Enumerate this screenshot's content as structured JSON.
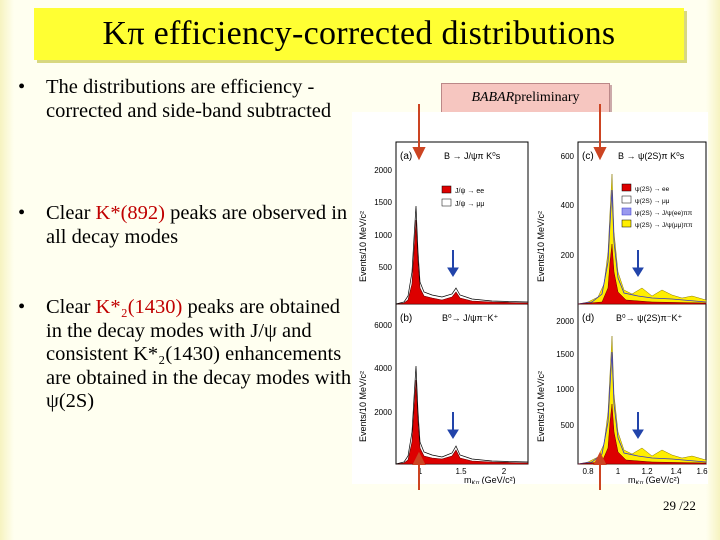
{
  "slide": {
    "title": "Kπ efficiency-corrected distributions",
    "bullets": [
      {
        "pre": "The distributions are efficiency -corrected and side-band subtracted",
        "hl": "",
        "post": ""
      },
      {
        "pre": "Clear ",
        "hl": "K*(892)",
        "post": " peaks are observed in all decay modes"
      },
      {
        "pre": "Clear ",
        "hl": "K*₂(1430)",
        "post": " peaks are obtained in the decay modes with J/ψ and consistent K*₂(1430) enhancements are obtained in the decay modes with ψ(2S)"
      }
    ],
    "badge_prefix": "BABAR",
    "badge_suffix": " preliminary",
    "page_number": "29 /22"
  },
  "figure": {
    "panels": [
      {
        "letter": "(a)",
        "process": "B → J/ψπ K⁰s",
        "yticks": [
          "500",
          "1000",
          "1500",
          "2000"
        ],
        "legend": [
          "J/ψ → ee",
          "J/ψ → μμ"
        ]
      },
      {
        "letter": "(c)",
        "process": "B → ψ(2S)π K⁰s",
        "yticks": [
          "200",
          "400",
          "600"
        ],
        "legend": [
          "ψ(2S) → ee",
          "ψ(2S) → μμ",
          "ψ(2S) → J/ψ(ee)ππ",
          "ψ(2S) → J/ψ(μμ)ππ"
        ]
      },
      {
        "letter": "(b)",
        "process": "B⁰→ J/ψπ⁻K⁺",
        "yticks": [
          "2000",
          "4000",
          "6000"
        ],
        "legend": []
      },
      {
        "letter": "(d)",
        "process": "B⁰→ ψ(2S)π⁻K⁺",
        "yticks": [
          "500",
          "1000",
          "1500",
          "2000"
        ],
        "legend": []
      }
    ],
    "ylabel_left": "Events/10 MeV/c²",
    "ylabel_right": "Events/10 MeV/c²",
    "xticks_left": [
      "1",
      "1.5",
      "2"
    ],
    "xticks_right": [
      "0.8",
      "1",
      "1.2",
      "1.4",
      "1.6"
    ],
    "xlabel_left": "m",
    "xlabel_left_sub": "Kπ",
    "xlabel_left_unit": "(GeV/c²)",
    "xlabel_right": "m",
    "xlabel_right_sub": "Kπ",
    "xlabel_right_unit": "(GeV/c²)",
    "colors": {
      "fill_ee": "#dd0000",
      "fill_mumu": "#ffffff",
      "fill_jee": "#3333cc",
      "fill_jmm": "#ffee00"
    }
  }
}
